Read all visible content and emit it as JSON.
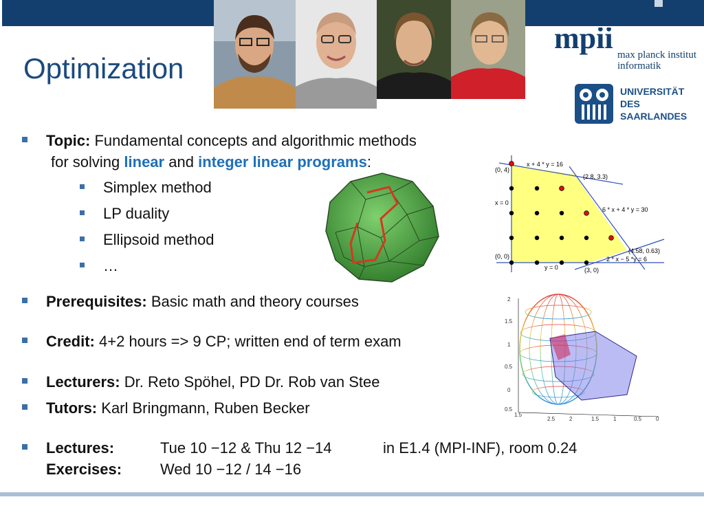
{
  "header": {
    "title": "Optimization"
  },
  "logos": {
    "mpi": {
      "line1": "max planck institut",
      "line2": "informatik",
      "mark": "mpii"
    },
    "uds": {
      "line1": "UNIVERSITÄT",
      "line2": "DES",
      "line3": "SAARLANDES"
    }
  },
  "portraits": [
    "portrait-1",
    "portrait-2",
    "portrait-3",
    "portrait-4"
  ],
  "topic": {
    "label": "Topic:",
    "text1": "Fundamental concepts and algorithmic methods",
    "text2a": "for solving",
    "link1": "linear",
    "text2b": "and",
    "link2": "integer linear programs",
    "text2c": ":",
    "subitems": [
      "Simplex method",
      "LP duality",
      "Ellipsoid method",
      "…"
    ]
  },
  "prerequisites": {
    "label": "Prerequisites:",
    "text": "Basic math and theory courses"
  },
  "credit": {
    "label": "Credit:",
    "text": "4+2 hours => 9 CP; written end of term exam"
  },
  "lecturers": {
    "label": "Lecturers:",
    "text": "Dr. Reto Spöhel, PD Dr. Rob van Stee"
  },
  "tutors": {
    "label": "Tutors:",
    "text": "Karl Bringmann, Ruben Becker"
  },
  "schedule": {
    "lectures_label": "Lectures:",
    "lectures_time": "Tue 10 −12 & Thu 12 −14",
    "lectures_room": "in E1.4 (MPI-INF), room 0.24",
    "exercises_label": "Exercises:",
    "exercises_time": "Wed 10 −12 / 14 −16"
  },
  "lp_figure": {
    "labels": {
      "p04": "(0, 4)",
      "c1": "x + 4 * y = 16",
      "p2833": "(2.8, 3.3)",
      "x0": "x = 0",
      "c2": "6 * x + 4 * y = 30",
      "p458": "(4.58, 0.63)",
      "p00": "(0, 0)",
      "c3": "2 * x − 5 *y = 6",
      "y0": "y = 0",
      "p30": "(3, 0)"
    }
  },
  "ellipsoid_figure": {
    "y_ticks": [
      "2",
      "1.5",
      "1",
      "0.5",
      "0"
    ],
    "x_ticks": [
      "0.5",
      "1.5",
      "2.5",
      "2",
      "1.5",
      "1",
      "0.5",
      "0"
    ]
  },
  "colors": {
    "accent": "#1f6fb8",
    "bar": "#123f6e",
    "bullet": "#3b6fa8",
    "title": "#1b4a7d"
  }
}
